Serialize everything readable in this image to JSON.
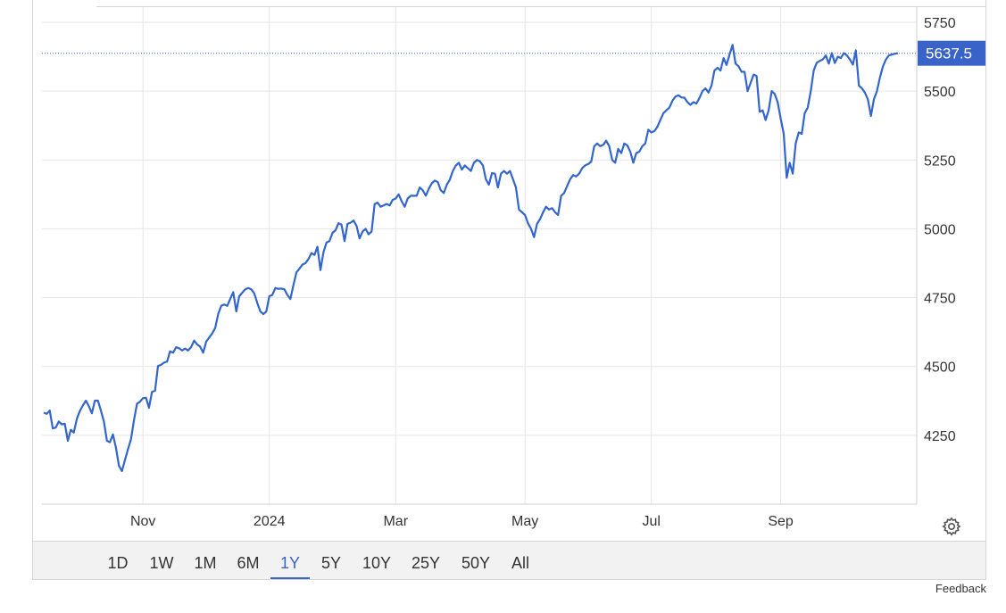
{
  "chart_data": {
    "type": "line",
    "series": [
      {
        "color": "#3366cc",
        "values": [
          4332,
          4328,
          4340,
          4275,
          4278,
          4300,
          4290,
          4292,
          4230,
          4270,
          4260,
          4310,
          4338,
          4358,
          4376,
          4356,
          4330,
          4376,
          4376,
          4340,
          4300,
          4230,
          4225,
          4253,
          4205,
          4140,
          4120,
          4160,
          4200,
          4235,
          4305,
          4365,
          4372,
          4385,
          4386,
          4350,
          4408,
          4412,
          4502,
          4506,
          4514,
          4518,
          4555,
          4550,
          4570,
          4566,
          4558,
          4565,
          4558,
          4570,
          4594,
          4580,
          4572,
          4550,
          4590,
          4605,
          4620,
          4640,
          4690,
          4720,
          4725,
          4720,
          4745,
          4770,
          4700,
          4755,
          4768,
          4780,
          4785,
          4780,
          4765,
          4730,
          4700,
          4690,
          4700,
          4755,
          4760,
          4785,
          4782,
          4783,
          4780,
          4760,
          4745,
          4795,
          4842,
          4855,
          4870,
          4875,
          4890,
          4912,
          4905,
          4935,
          4850,
          4915,
          4950,
          4955,
          4985,
          4995,
          5020,
          5015,
          4955,
          5018,
          5022,
          5030,
          5010,
          4965,
          4990,
          5000,
          4980,
          4990,
          5090,
          5095,
          5080,
          5085,
          5090,
          5085,
          5105,
          5110,
          5125,
          5100,
          5080,
          5110,
          5120,
          5120,
          5120,
          5150,
          5140,
          5120,
          5145,
          5165,
          5175,
          5170,
          5140,
          5130,
          5160,
          5178,
          5210,
          5230,
          5240,
          5215,
          5230,
          5220,
          5210,
          5240,
          5250,
          5245,
          5230,
          5180,
          5160,
          5202,
          5200,
          5150,
          5200,
          5210,
          5200,
          5210,
          5180,
          5150,
          5070,
          5060,
          5050,
          5020,
          5000,
          4970,
          5018,
          5035,
          5060,
          5080,
          5070,
          5075,
          5060,
          5050,
          5120,
          5130,
          5155,
          5180,
          5195,
          5190,
          5200,
          5220,
          5230,
          5235,
          5243,
          5300,
          5310,
          5300,
          5305,
          5320,
          5300,
          5250,
          5240,
          5290,
          5275,
          5310,
          5303,
          5280,
          5240,
          5275,
          5280,
          5300,
          5310,
          5360,
          5350,
          5355,
          5370,
          5395,
          5420,
          5430,
          5440,
          5465,
          5480,
          5485,
          5477,
          5476,
          5460,
          5450,
          5460,
          5455,
          5475,
          5500,
          5510,
          5495,
          5520,
          5575,
          5585,
          5575,
          5620,
          5595,
          5633,
          5668,
          5600,
          5590,
          5570,
          5570,
          5500,
          5530,
          5560,
          5555,
          5425,
          5430,
          5395,
          5430,
          5500,
          5490,
          5460,
          5400,
          5345,
          5185,
          5240,
          5200,
          5310,
          5350,
          5345,
          5420,
          5440,
          5500,
          5575,
          5603,
          5610,
          5615,
          5630,
          5600,
          5638,
          5602,
          5625,
          5620,
          5638,
          5630,
          5615,
          5596,
          5648,
          5520,
          5510,
          5495,
          5470,
          5410,
          5470,
          5500,
          5550,
          5590,
          5615,
          5630,
          5633,
          5636,
          5637.5
        ]
      }
    ],
    "current_value": 5637.5,
    "current_value_label": "5637.5",
    "yticks": [
      4250,
      4500,
      4750,
      5000,
      5250,
      5500,
      5750
    ],
    "ylim": [
      4000,
      5805
    ],
    "xticks": [
      {
        "label": "Nov",
        "index": 33
      },
      {
        "label": "2024",
        "index": 75
      },
      {
        "label": "Mar",
        "index": 117
      },
      {
        "label": "May",
        "index": 160
      },
      {
        "label": "Jul",
        "index": 202
      },
      {
        "label": "Sep",
        "index": 245
      }
    ],
    "grid": true,
    "line_color": "#3366cc",
    "badge_color": "#3a63c9"
  },
  "range_buttons": [
    {
      "label": "1D"
    },
    {
      "label": "1W"
    },
    {
      "label": "1M"
    },
    {
      "label": "6M"
    },
    {
      "label": "1Y"
    },
    {
      "label": "5Y"
    },
    {
      "label": "10Y"
    },
    {
      "label": "25Y"
    },
    {
      "label": "50Y"
    },
    {
      "label": "All"
    }
  ],
  "active_range": "1Y",
  "settings_icon": "gear-icon",
  "feedback_label": "Feedback"
}
